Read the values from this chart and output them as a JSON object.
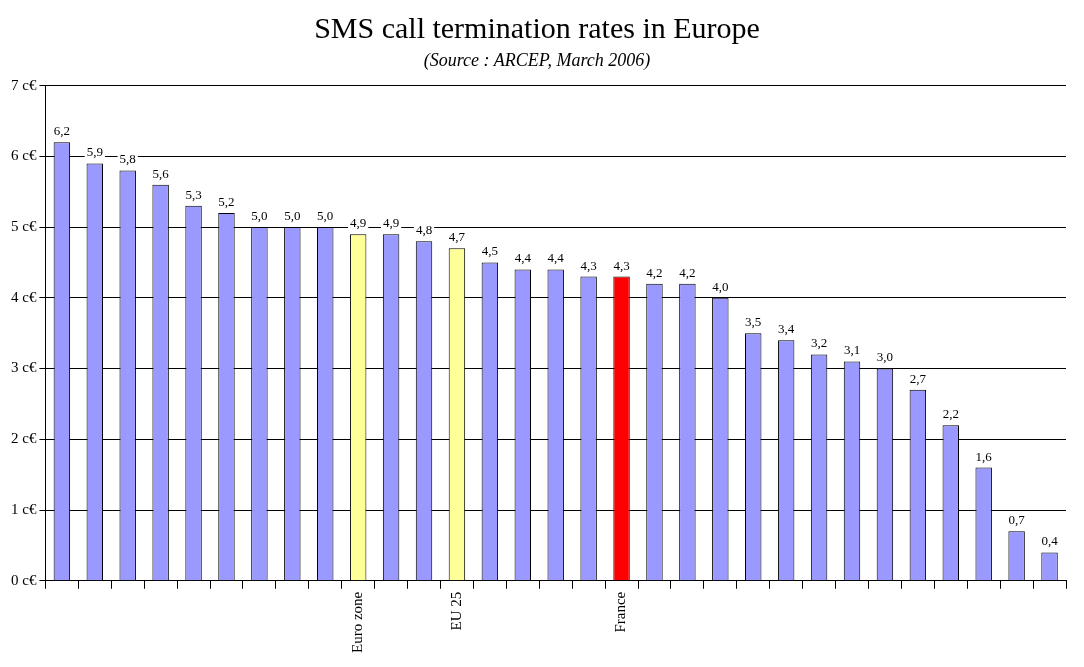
{
  "chart_data": {
    "type": "bar",
    "title": "SMS call termination rates in Europe",
    "subtitle": "(Source : ARCEP, March 2006)",
    "categories": [
      null,
      null,
      null,
      null,
      null,
      null,
      null,
      null,
      null,
      "Euro zone",
      null,
      null,
      "EU 25",
      null,
      null,
      null,
      null,
      "France",
      null,
      null,
      null,
      null,
      null,
      null,
      null,
      null,
      null,
      null,
      null,
      null,
      null
    ],
    "values": [
      6.2,
      5.9,
      5.8,
      5.6,
      5.3,
      5.2,
      5.0,
      5.0,
      5.0,
      4.9,
      4.9,
      4.8,
      4.7,
      4.5,
      4.4,
      4.4,
      4.3,
      4.3,
      4.2,
      4.2,
      4.0,
      3.5,
      3.4,
      3.2,
      3.1,
      3.0,
      2.7,
      2.2,
      1.6,
      0.7,
      0.4
    ],
    "value_labels": [
      "6,2",
      "5,9",
      "5,8",
      "5,6",
      "5,3",
      "5,2",
      "5,0",
      "5,0",
      "5,0",
      "4,9",
      "4,9",
      "4,8",
      "4,7",
      "4,5",
      "4,4",
      "4,4",
      "4,3",
      "4,3",
      "4,2",
      "4,2",
      "4,0",
      "3,5",
      "3,4",
      "3,2",
      "3,1",
      "3,0",
      "2,7",
      "2,2",
      "1,6",
      "0,7",
      "0,4"
    ],
    "colors": [
      "#9999ff",
      "#9999ff",
      "#9999ff",
      "#9999ff",
      "#9999ff",
      "#9999ff",
      "#9999ff",
      "#9999ff",
      "#9999ff",
      "#ffff99",
      "#9999ff",
      "#9999ff",
      "#ffff99",
      "#9999ff",
      "#9999ff",
      "#9999ff",
      "#9999ff",
      "#ff0000",
      "#9999ff",
      "#9999ff",
      "#9999ff",
      "#9999ff",
      "#9999ff",
      "#9999ff",
      "#9999ff",
      "#9999ff",
      "#9999ff",
      "#9999ff",
      "#9999ff",
      "#9999ff",
      "#9999ff"
    ],
    "ylim": [
      0,
      7
    ],
    "yticks": [
      {
        "value": 0,
        "label": "0 c€"
      },
      {
        "value": 1,
        "label": "1 c€"
      },
      {
        "value": 2,
        "label": "2 c€"
      },
      {
        "value": 3,
        "label": "3 c€"
      },
      {
        "value": 4,
        "label": "4 c€"
      },
      {
        "value": 5,
        "label": "5 c€"
      },
      {
        "value": 6,
        "label": "6 c€"
      },
      {
        "value": 7,
        "label": "7 c€"
      }
    ],
    "grid": "y",
    "legend": false
  }
}
